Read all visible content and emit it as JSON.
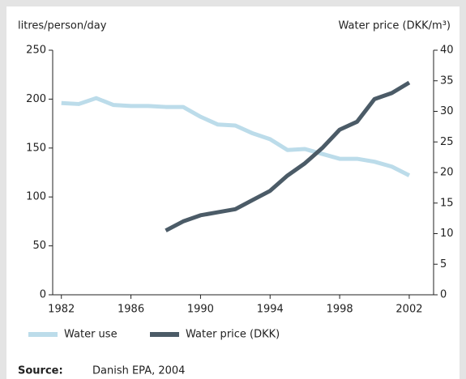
{
  "chart_data": {
    "type": "line",
    "y_label": "litres/person/day",
    "y2_label": "Water price (DKK/m³)",
    "x": [
      1982,
      1983,
      1984,
      1985,
      1986,
      1987,
      1988,
      1989,
      1990,
      1991,
      1992,
      1993,
      1994,
      1995,
      1996,
      1997,
      1998,
      1999,
      2000,
      2001,
      2002
    ],
    "series": [
      {
        "name": "Water use",
        "color": "#bcdcea",
        "values": [
          196,
          195,
          201,
          194,
          193,
          193,
          192,
          192,
          182,
          174,
          173,
          165,
          159,
          148,
          149,
          144,
          139,
          139,
          136,
          131,
          122
        ]
      },
      {
        "name": "Water price (DKK)",
        "color": "#4b5b67",
        "axis": "y2",
        "values": [
          null,
          null,
          null,
          null,
          null,
          null,
          10.5,
          12,
          13,
          13.5,
          14,
          15.5,
          17,
          19.5,
          21.5,
          24,
          27,
          28.3,
          32,
          33,
          34.7
        ]
      }
    ],
    "xlim": [
      1981.5,
      2003.4
    ],
    "xticks": [
      1982,
      1986,
      1990,
      1994,
      1998,
      2002
    ],
    "ylim": [
      0,
      250
    ],
    "yticks": [
      0,
      50,
      100,
      150,
      200,
      250
    ],
    "y2lim": [
      0,
      40
    ],
    "y2ticks": [
      0,
      5,
      10,
      15,
      20,
      25,
      30,
      35,
      40
    ],
    "legend": "bottom",
    "source_label": "Source:",
    "source": "Danish EPA, 2004"
  }
}
